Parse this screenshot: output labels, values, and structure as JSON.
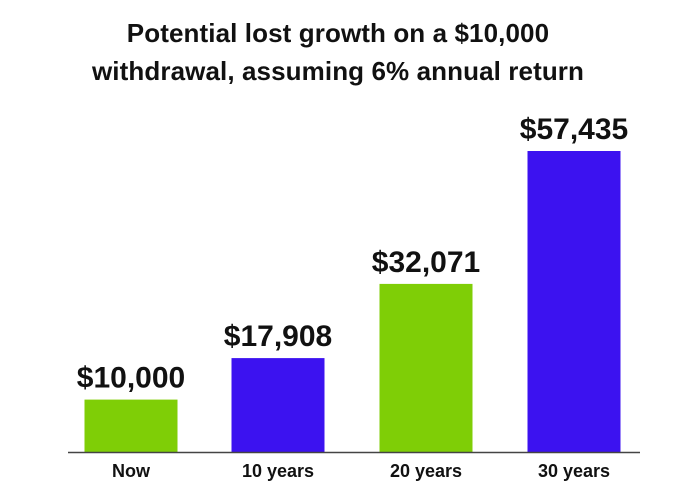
{
  "chart_data": {
    "type": "bar",
    "title": "Potential lost growth on a $10,000 withdrawal, assuming 6% annual return",
    "title_lines": [
      "Potential lost growth on a $10,000",
      "withdrawal, assuming 6% annual return"
    ],
    "xlabel": "",
    "ylabel": "",
    "categories": [
      "Now",
      "10 years",
      "20 years",
      "30 years"
    ],
    "values": [
      10000,
      17908,
      32071,
      57435
    ],
    "value_labels": [
      "$10,000",
      "$17,908",
      "$32,071",
      "$57,435"
    ],
    "bar_colors": [
      "#7fce06",
      "#3c12f0",
      "#7fce06",
      "#3c12f0"
    ],
    "axis_color": "#444444",
    "ylim": [
      0,
      57435
    ],
    "grid": false,
    "legend": "none"
  }
}
